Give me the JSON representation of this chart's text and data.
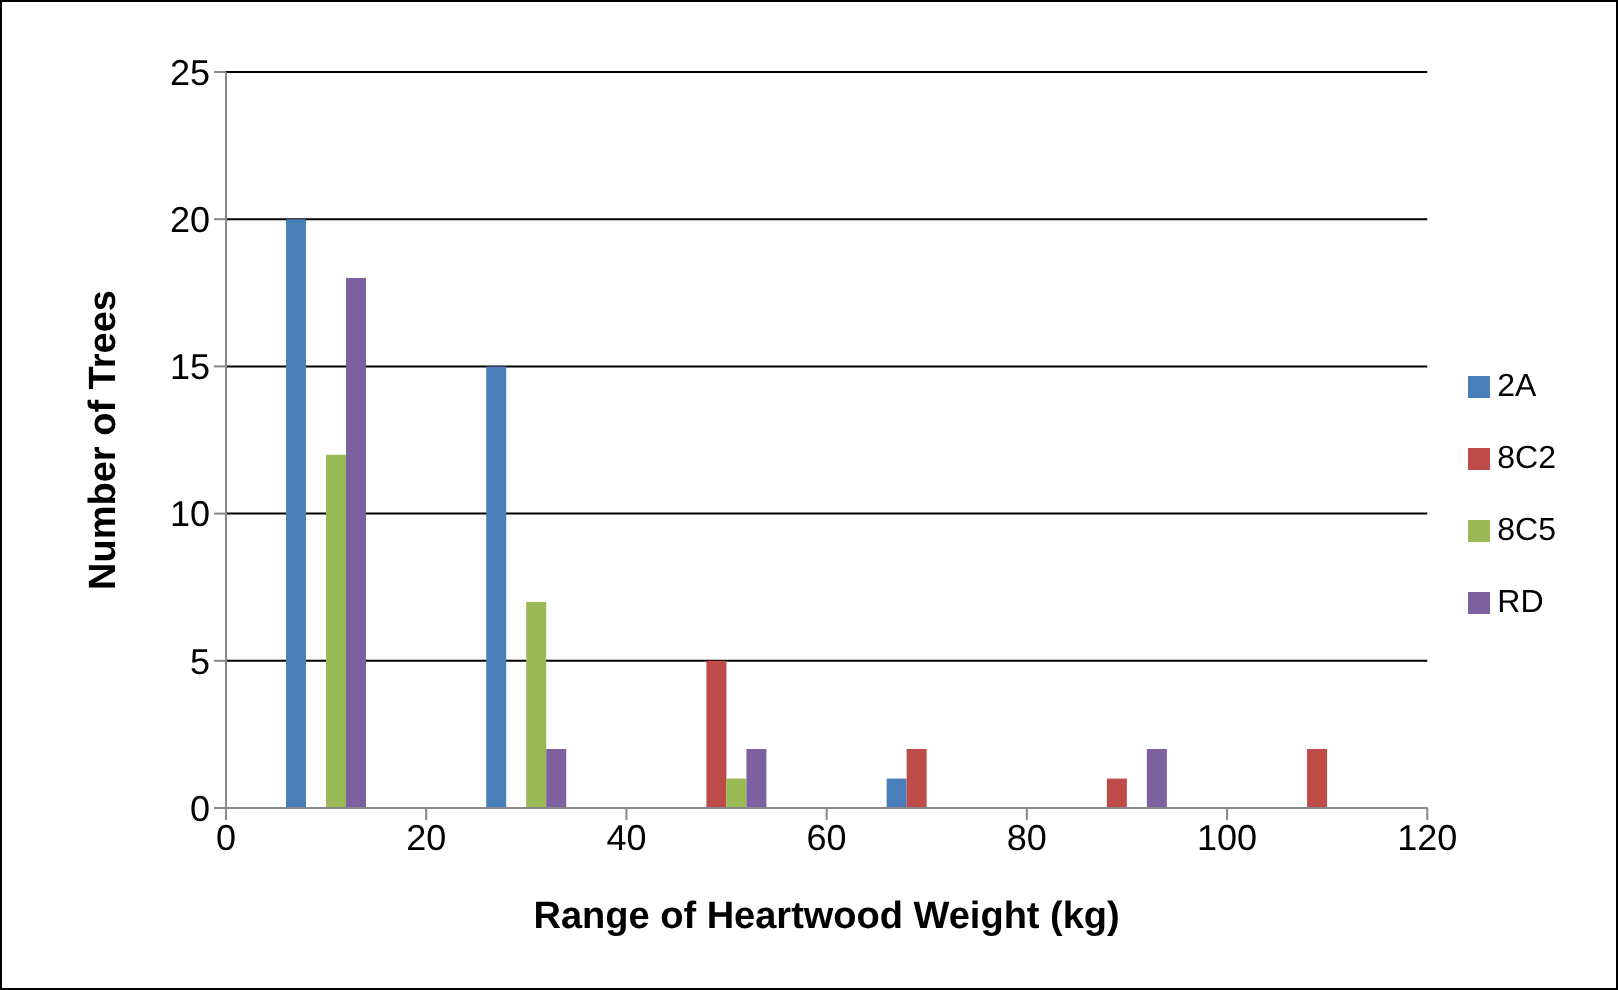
{
  "chart_data": {
    "type": "bar",
    "xlabel": "Range of Heartwood Weight (kg)",
    "ylabel": "Number of Trees",
    "x": [
      10,
      30,
      50,
      70,
      90,
      110
    ],
    "series": [
      {
        "name": "2A",
        "color": "#4a7ebb",
        "values": [
          20,
          15,
          0,
          1,
          0,
          0
        ]
      },
      {
        "name": "8C2",
        "color": "#be4b48",
        "values": [
          0,
          0,
          5,
          2,
          1,
          2
        ]
      },
      {
        "name": "8C5",
        "color": "#98b954",
        "values": [
          12,
          7,
          1,
          0,
          0,
          0
        ]
      },
      {
        "name": "RD",
        "color": "#7d60a0",
        "values": [
          18,
          2,
          2,
          0,
          2,
          0
        ]
      }
    ],
    "xlim": [
      0,
      120
    ],
    "xticks": [
      0,
      20,
      40,
      60,
      80,
      100,
      120
    ],
    "ylim": [
      0,
      25
    ],
    "yticks": [
      0,
      5,
      10,
      15,
      20,
      25
    ],
    "grid": "y",
    "legend": "right"
  }
}
